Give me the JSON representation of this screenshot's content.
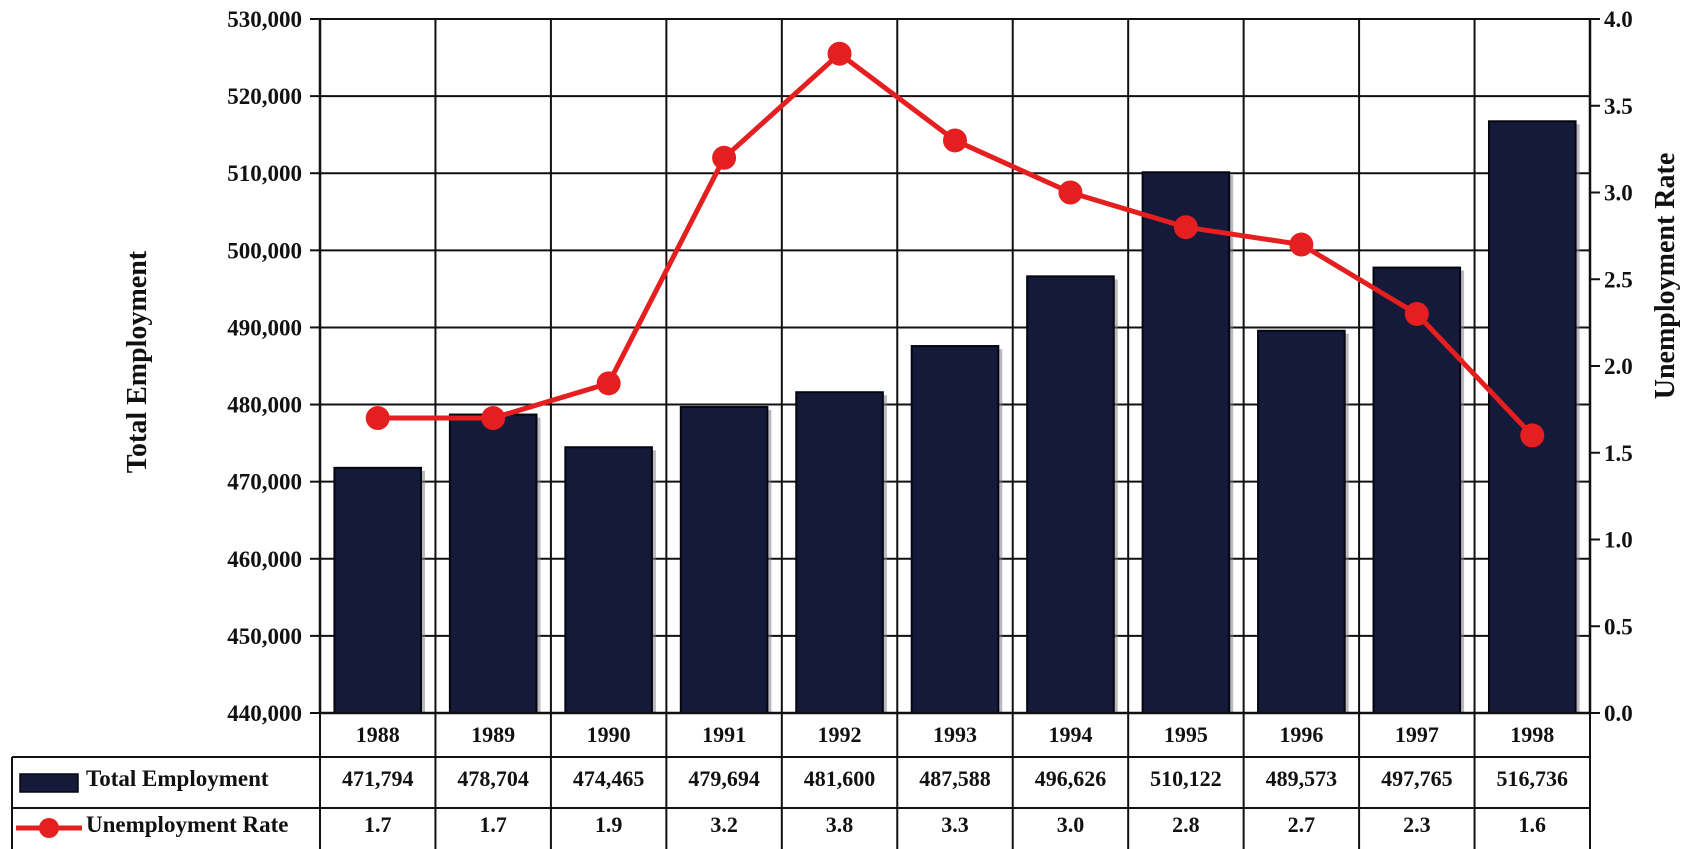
{
  "chart_data": {
    "type": "bar",
    "categories": [
      "1988",
      "1989",
      "1990",
      "1991",
      "1992",
      "1993",
      "1994",
      "1995",
      "1996",
      "1997",
      "1998"
    ],
    "series": [
      {
        "name": "Total Employment",
        "type": "bar",
        "axis": "left",
        "color": "#161a3a",
        "values": [
          471794,
          478704,
          474465,
          479694,
          481600,
          487588,
          496626,
          510122,
          489573,
          497765,
          516736
        ],
        "labels": [
          "471,794",
          "478,704",
          "474,465",
          "479,694",
          "481,600",
          "487,588",
          "496,626",
          "510,122",
          "489,573",
          "497,765",
          "516,736"
        ]
      },
      {
        "name": "Unemployment Rate",
        "type": "line",
        "axis": "right",
        "color": "#e51f1f",
        "marker": "circle",
        "values": [
          1.7,
          1.7,
          1.9,
          3.2,
          3.8,
          3.3,
          3.0,
          2.8,
          2.7,
          2.3,
          1.6
        ],
        "labels": [
          "1.7",
          "1.7",
          "1.9",
          "3.2",
          "3.8",
          "3.3",
          "3.0",
          "2.8",
          "2.7",
          "2.3",
          "1.6"
        ]
      }
    ],
    "y_left": {
      "label": "Total Employment",
      "lim": [
        440000,
        530000
      ],
      "ticks": [
        "440,000",
        "450,000",
        "460,000",
        "470,000",
        "480,000",
        "490,000",
        "500,000",
        "510,000",
        "520,000",
        "530,000"
      ]
    },
    "y_right": {
      "label": "Unemployment Rate",
      "lim": [
        0,
        4
      ],
      "ticks": [
        "0.0",
        "0.5",
        "1.0",
        "1.5",
        "2.0",
        "2.5",
        "3.0",
        "3.5",
        "4.0"
      ]
    },
    "grid": true,
    "data_table": true
  }
}
